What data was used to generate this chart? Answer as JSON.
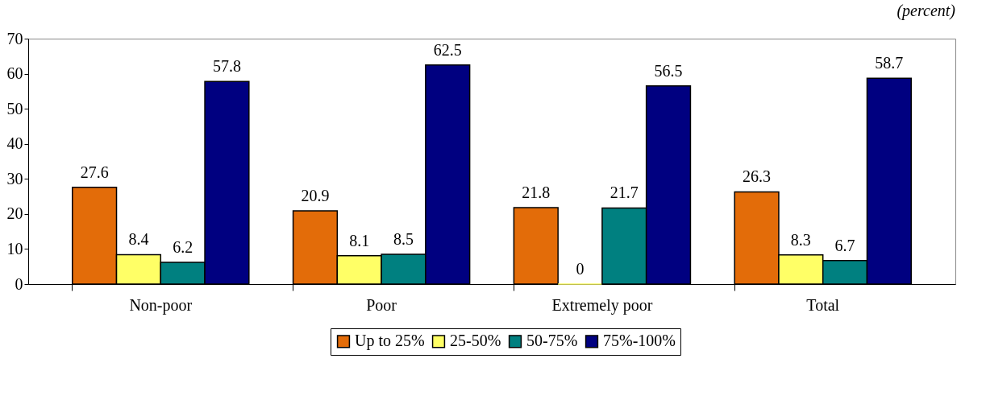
{
  "chart_data": {
    "type": "bar",
    "subtitle": "(percent)",
    "categories": [
      "Non-poor",
      "Poor",
      "Extremely poor",
      "Total"
    ],
    "series": [
      {
        "name": "Up to 25%",
        "color": "#e36c09",
        "values": [
          27.6,
          20.9,
          21.8,
          26.3
        ]
      },
      {
        "name": "25-50%",
        "color": "#ffff66",
        "values": [
          8.4,
          8.1,
          0,
          8.3
        ]
      },
      {
        "name": "50-75%",
        "color": "#008080",
        "values": [
          6.2,
          8.5,
          21.7,
          6.7
        ]
      },
      {
        "name": "75%-100%",
        "color": "#000080",
        "values": [
          57.8,
          62.5,
          56.5,
          58.7
        ]
      }
    ],
    "ylim": [
      0,
      70
    ],
    "yticks": [
      0,
      10,
      20,
      30,
      40,
      50,
      60,
      70
    ],
    "data_labels": true,
    "legend": "bottom",
    "grid": false
  }
}
